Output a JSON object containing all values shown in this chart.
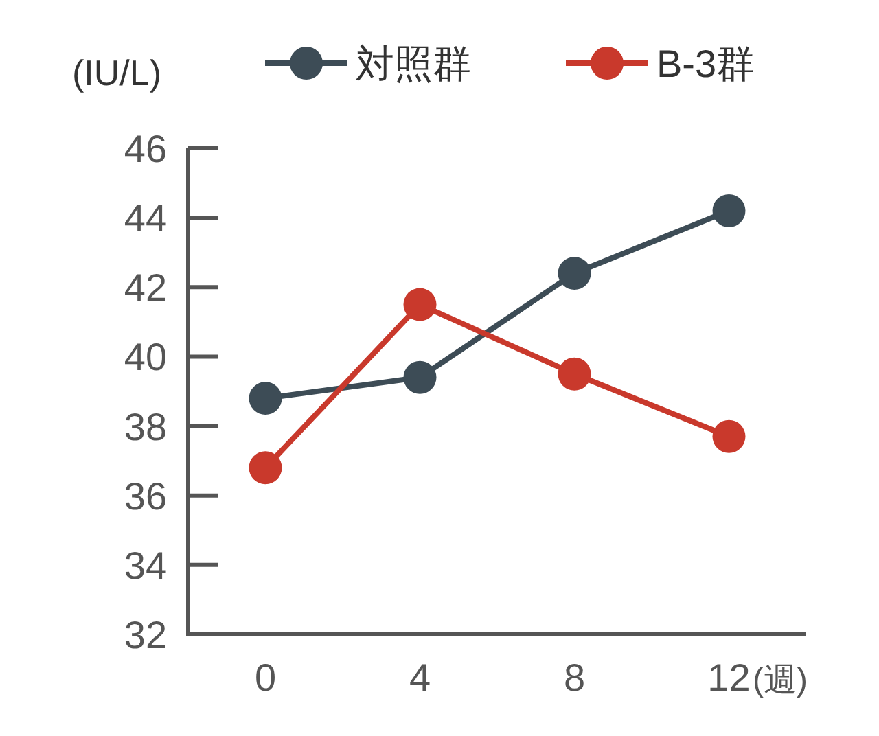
{
  "chart_data": {
    "type": "line",
    "xlabel": "(週)",
    "ylabel": "(IU/L)",
    "x": [
      0,
      4,
      8,
      12
    ],
    "xlim": [
      -2,
      14
    ],
    "xticks": [
      0,
      4,
      8,
      12
    ],
    "ylim": [
      32,
      46
    ],
    "yticks": [
      32,
      34,
      36,
      38,
      40,
      42,
      44,
      46
    ],
    "series": [
      {
        "name": "対照群",
        "color": "#3d4c56",
        "values": [
          38.8,
          39.4,
          42.4,
          44.2
        ]
      },
      {
        "name": "B-3群",
        "color": "#c9392c",
        "values": [
          36.8,
          41.5,
          39.5,
          37.7
        ]
      }
    ],
    "marker": "circle",
    "line_style": "solid",
    "legend": "top",
    "grid": false
  }
}
